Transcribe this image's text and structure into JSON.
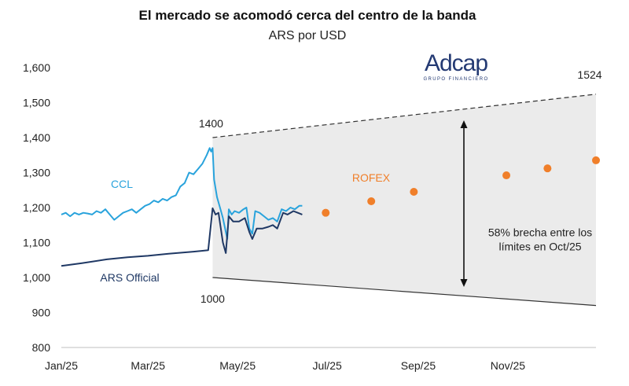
{
  "chart_data": {
    "type": "line",
    "title": "El mercado se acomodó cerca del centro de la banda",
    "subtitle": "ARS por USD",
    "ylim": [
      800,
      1600
    ],
    "yticks": [
      800,
      900,
      "1,000",
      "1,100",
      "1,200",
      "1,300",
      "1,400",
      "1,500",
      "1,600"
    ],
    "ytick_values": [
      800,
      900,
      1000,
      1100,
      1200,
      1300,
      1400,
      1500,
      1600
    ],
    "xlim": [
      "2025-01-01",
      "2025-12-31"
    ],
    "xticks": [
      "Jan/25",
      "Mar/25",
      "May/25",
      "Jul/25",
      "Sep/25",
      "Nov/25"
    ],
    "xtick_dates": [
      "2025-01-01",
      "2025-03-01",
      "2025-05-01",
      "2025-07-01",
      "2025-09-01",
      "2025-11-01"
    ],
    "grid": false,
    "series": [
      {
        "name": "CCL",
        "color": "#29a3dc",
        "points": [
          [
            "2025-01-01",
            1180
          ],
          [
            "2025-01-04",
            1185
          ],
          [
            "2025-01-07",
            1175
          ],
          [
            "2025-01-10",
            1185
          ],
          [
            "2025-01-13",
            1180
          ],
          [
            "2025-01-16",
            1185
          ],
          [
            "2025-01-19",
            1183
          ],
          [
            "2025-01-22",
            1180
          ],
          [
            "2025-01-25",
            1190
          ],
          [
            "2025-01-28",
            1185
          ],
          [
            "2025-01-31",
            1195
          ],
          [
            "2025-02-03",
            1180
          ],
          [
            "2025-02-06",
            1165
          ],
          [
            "2025-02-09",
            1175
          ],
          [
            "2025-02-12",
            1185
          ],
          [
            "2025-02-15",
            1190
          ],
          [
            "2025-02-18",
            1195
          ],
          [
            "2025-02-21",
            1185
          ],
          [
            "2025-02-24",
            1195
          ],
          [
            "2025-02-27",
            1205
          ],
          [
            "2025-03-02",
            1210
          ],
          [
            "2025-03-05",
            1220
          ],
          [
            "2025-03-08",
            1215
          ],
          [
            "2025-03-11",
            1225
          ],
          [
            "2025-03-14",
            1220
          ],
          [
            "2025-03-17",
            1230
          ],
          [
            "2025-03-20",
            1235
          ],
          [
            "2025-03-23",
            1260
          ],
          [
            "2025-03-26",
            1270
          ],
          [
            "2025-03-29",
            1300
          ],
          [
            "2025-04-01",
            1295
          ],
          [
            "2025-04-04",
            1310
          ],
          [
            "2025-04-07",
            1325
          ],
          [
            "2025-04-10",
            1350
          ],
          [
            "2025-04-12",
            1370
          ],
          [
            "2025-04-13",
            1360
          ],
          [
            "2025-04-14",
            1370
          ],
          [
            "2025-04-15",
            1280
          ],
          [
            "2025-04-17",
            1230
          ],
          [
            "2025-04-19",
            1200
          ],
          [
            "2025-04-21",
            1170
          ],
          [
            "2025-04-23",
            1130
          ],
          [
            "2025-04-24",
            1110
          ],
          [
            "2025-04-25",
            1195
          ],
          [
            "2025-04-27",
            1180
          ],
          [
            "2025-04-29",
            1190
          ],
          [
            "2025-05-02",
            1185
          ],
          [
            "2025-05-05",
            1195
          ],
          [
            "2025-05-07",
            1200
          ],
          [
            "2025-05-09",
            1140
          ],
          [
            "2025-05-11",
            1125
          ],
          [
            "2025-05-13",
            1190
          ],
          [
            "2025-05-16",
            1185
          ],
          [
            "2025-05-19",
            1175
          ],
          [
            "2025-05-22",
            1165
          ],
          [
            "2025-05-25",
            1170
          ],
          [
            "2025-05-28",
            1160
          ],
          [
            "2025-05-31",
            1195
          ],
          [
            "2025-06-03",
            1190
          ],
          [
            "2025-06-06",
            1200
          ],
          [
            "2025-06-09",
            1195
          ],
          [
            "2025-06-12",
            1205
          ],
          [
            "2025-06-14",
            1205
          ]
        ]
      },
      {
        "name": "ARS Official",
        "color": "#1f3864",
        "points": [
          [
            "2025-01-01",
            1033
          ],
          [
            "2025-01-15",
            1041
          ],
          [
            "2025-02-01",
            1052
          ],
          [
            "2025-02-15",
            1058
          ],
          [
            "2025-03-01",
            1062
          ],
          [
            "2025-03-15",
            1068
          ],
          [
            "2025-04-01",
            1074
          ],
          [
            "2025-04-11",
            1078
          ],
          [
            "2025-04-14",
            1198
          ],
          [
            "2025-04-16",
            1180
          ],
          [
            "2025-04-18",
            1185
          ],
          [
            "2025-04-21",
            1100
          ],
          [
            "2025-04-23",
            1070
          ],
          [
            "2025-04-25",
            1175
          ],
          [
            "2025-04-28",
            1160
          ],
          [
            "2025-05-02",
            1160
          ],
          [
            "2025-05-06",
            1170
          ],
          [
            "2025-05-09",
            1130
          ],
          [
            "2025-05-11",
            1110
          ],
          [
            "2025-05-14",
            1140
          ],
          [
            "2025-05-18",
            1140
          ],
          [
            "2025-05-22",
            1145
          ],
          [
            "2025-05-25",
            1150
          ],
          [
            "2025-05-28",
            1140
          ],
          [
            "2025-06-01",
            1185
          ],
          [
            "2025-06-04",
            1180
          ],
          [
            "2025-06-08",
            1190
          ],
          [
            "2025-06-11",
            1185
          ],
          [
            "2025-06-14",
            1180
          ]
        ]
      },
      {
        "name": "ROFEX",
        "color": "#f07f2a",
        "markers_only": true,
        "points": [
          [
            "2025-06-30",
            1185
          ],
          [
            "2025-07-31",
            1218
          ],
          [
            "2025-08-29",
            1245
          ],
          [
            "2025-10-31",
            1292
          ],
          [
            "2025-11-28",
            1312
          ],
          [
            "2025-12-31",
            1335
          ]
        ]
      }
    ],
    "band": {
      "upper": [
        [
          "2025-04-14",
          1400
        ],
        [
          "2025-12-31",
          1524
        ]
      ],
      "lower": [
        [
          "2025-04-14",
          1000
        ],
        [
          "2025-12-31",
          920
        ]
      ],
      "fill": "#ebebeb"
    },
    "annotations": [
      {
        "text": "1400",
        "x": "2025-04-14",
        "y": 1400
      },
      {
        "text": "1000",
        "x": "2025-04-14",
        "y": 1000
      },
      {
        "text": "1524",
        "x": "2025-12-31",
        "y": 1524
      },
      {
        "text": "58% brecha entre los",
        "x": "2025-11-23",
        "y": 1118
      },
      {
        "text": "límites en  Oct/25",
        "x": "2025-11-23",
        "y": 1078
      }
    ],
    "brand": {
      "logo": "Adcap",
      "logo_sub": "GRUPO FINANCIERO"
    }
  }
}
